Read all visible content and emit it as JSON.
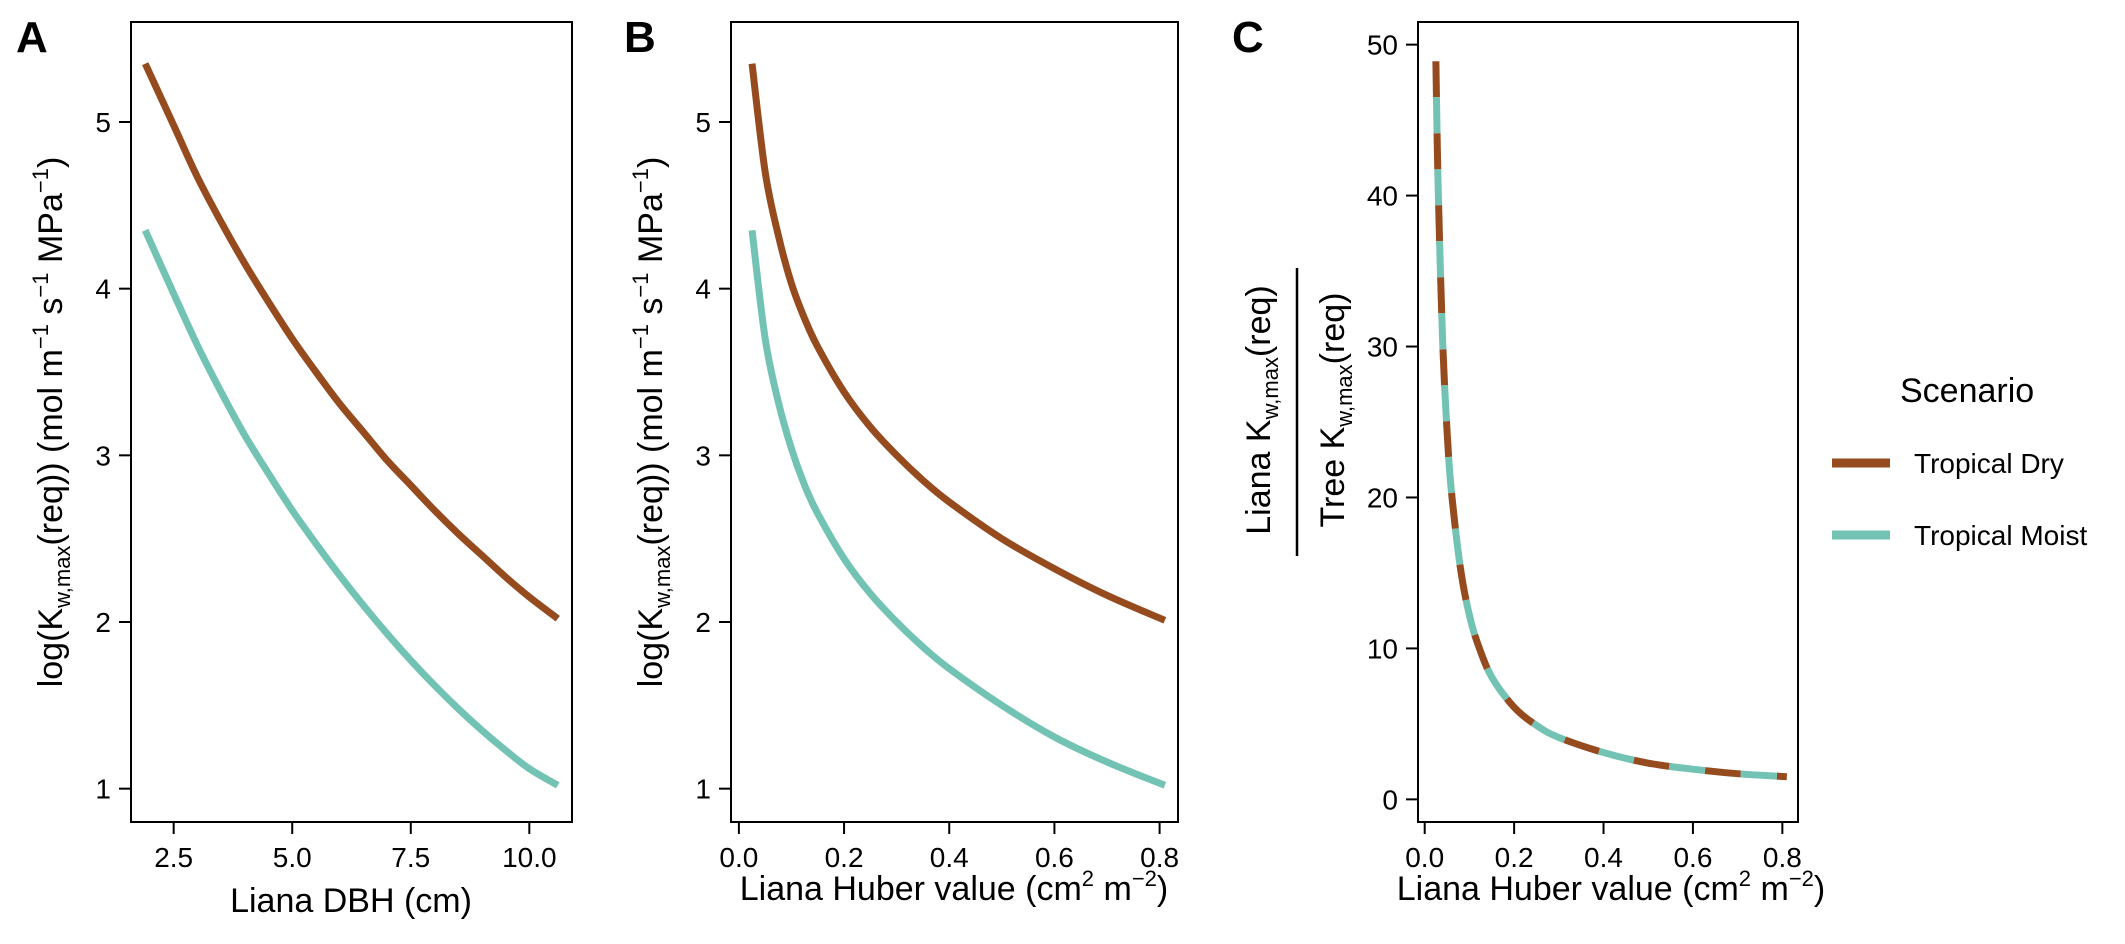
{
  "colors": {
    "tropical_dry": "#964B1E",
    "tropical_moist": "#73C3B4",
    "axis": "#000000"
  },
  "legend": {
    "title": "Scenario",
    "items": [
      "Tropical Dry",
      "Tropical Moist"
    ],
    "placement": "right"
  },
  "panels": [
    {
      "letter": "A",
      "xlabel": "Liana DBH (cm)",
      "ylabel": {
        "pre": "log(K",
        "sub": "w,max",
        "mid": "(req))  (mol m",
        "sup1": "−1",
        "mid2": " s",
        "sup2": "−1",
        "mid3": " MPa",
        "sup3": "−1",
        "post": ")"
      },
      "xticks": [
        "2.5",
        "5.0",
        "7.5",
        "10.0"
      ],
      "yticks": [
        "1",
        "2",
        "3",
        "4",
        "5"
      ]
    },
    {
      "letter": "B",
      "xlabel": {
        "pre": "Liana Huber value (cm",
        "sup1": "2",
        "mid": " m",
        "sup2": "−2",
        "post": ")"
      },
      "ylabel": {
        "pre": "log(K",
        "sub": "w,max",
        "mid": "(req))  (mol m",
        "sup1": "−1",
        "mid2": " s",
        "sup2": "−1",
        "mid3": " MPa",
        "sup3": "−1",
        "post": ")"
      },
      "xticks": [
        "0.0",
        "0.2",
        "0.4",
        "0.6",
        "0.8"
      ],
      "yticks": [
        "1",
        "2",
        "3",
        "4",
        "5"
      ]
    },
    {
      "letter": "C",
      "xlabel": {
        "pre": "Liana Huber value (cm",
        "sup1": "2",
        "mid": " m",
        "sup2": "−2",
        "post": ")"
      },
      "ylabel_top": {
        "pre": "Liana K",
        "sub": "w,max",
        "post": "(req)"
      },
      "ylabel_bottom": {
        "pre": "Tree K",
        "sub": "w,max",
        "post": "(req)"
      },
      "xticks": [
        "0.0",
        "0.2",
        "0.4",
        "0.6",
        "0.8"
      ],
      "yticks": [
        "0",
        "10",
        "20",
        "30",
        "40",
        "50"
      ]
    }
  ],
  "chart_data": [
    {
      "type": "line",
      "panel": "A",
      "xlim": [
        1.6,
        10.9
      ],
      "ylim": [
        0.8,
        5.6
      ],
      "x": [
        1.9,
        2.5,
        3.0,
        3.5,
        4.0,
        4.5,
        5.0,
        5.5,
        6.0,
        6.5,
        7.0,
        7.5,
        8.0,
        8.5,
        9.0,
        9.5,
        10.0,
        10.6
      ],
      "series": [
        {
          "name": "Tropical Dry",
          "values": [
            5.35,
            4.98,
            4.67,
            4.4,
            4.15,
            3.92,
            3.7,
            3.5,
            3.31,
            3.14,
            2.97,
            2.82,
            2.67,
            2.53,
            2.4,
            2.27,
            2.15,
            2.02
          ]
        },
        {
          "name": "Tropical Moist",
          "values": [
            4.35,
            3.97,
            3.66,
            3.38,
            3.12,
            2.89,
            2.67,
            2.47,
            2.28,
            2.1,
            1.93,
            1.77,
            1.62,
            1.48,
            1.35,
            1.23,
            1.12,
            1.02
          ]
        }
      ]
    },
    {
      "type": "line",
      "panel": "B",
      "xlim": [
        -0.015,
        0.835
      ],
      "ylim": [
        0.8,
        5.6
      ],
      "x": [
        0.025,
        0.05,
        0.075,
        0.1,
        0.125,
        0.15,
        0.2,
        0.25,
        0.3,
        0.35,
        0.4,
        0.5,
        0.6,
        0.7,
        0.81
      ],
      "series": [
        {
          "name": "Tropical Dry",
          "values": [
            5.35,
            4.7,
            4.32,
            4.03,
            3.82,
            3.65,
            3.38,
            3.17,
            3.0,
            2.85,
            2.72,
            2.5,
            2.32,
            2.16,
            2.01
          ]
        },
        {
          "name": "Tropical Moist",
          "values": [
            4.35,
            3.7,
            3.32,
            3.04,
            2.82,
            2.65,
            2.38,
            2.17,
            2.0,
            1.85,
            1.72,
            1.5,
            1.31,
            1.16,
            1.02
          ]
        }
      ]
    },
    {
      "type": "line",
      "panel": "C",
      "xlim": [
        -0.015,
        0.835
      ],
      "ylim": [
        -1.5,
        51.5
      ],
      "x": [
        0.025,
        0.03,
        0.04,
        0.05,
        0.06,
        0.08,
        0.1,
        0.12,
        0.15,
        0.2,
        0.25,
        0.3,
        0.4,
        0.5,
        0.6,
        0.7,
        0.81
      ],
      "series": [
        {
          "name": "Tropical Dry",
          "dashed": true,
          "values": [
            48.9,
            40.7,
            30.5,
            24.4,
            20.3,
            15.3,
            12.2,
            10.2,
            8.1,
            6.1,
            4.9,
            4.1,
            3.1,
            2.4,
            2.0,
            1.7,
            1.5
          ]
        },
        {
          "name": "Tropical Moist",
          "dashed": true,
          "values": [
            48.9,
            40.7,
            30.5,
            24.4,
            20.3,
            15.3,
            12.2,
            10.2,
            8.1,
            6.1,
            4.9,
            4.1,
            3.1,
            2.4,
            2.0,
            1.7,
            1.5
          ]
        }
      ]
    }
  ]
}
